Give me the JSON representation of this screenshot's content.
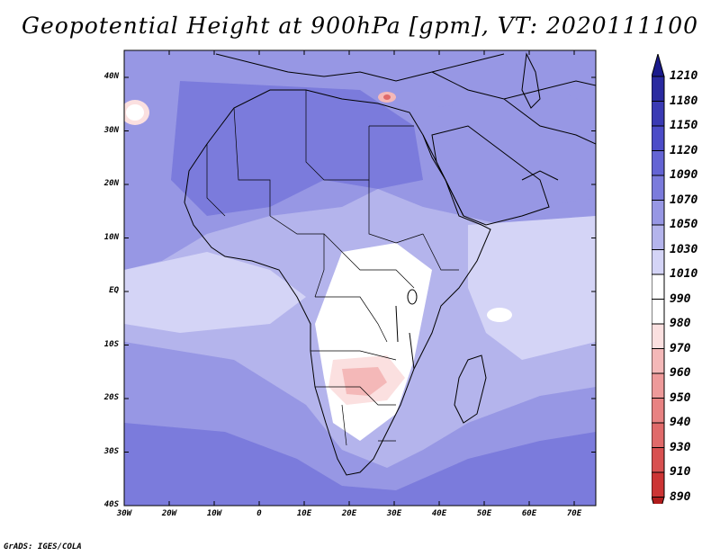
{
  "title": "Geopotential Height at 900hPa [gpm], VT: 2020111100",
  "credit": "GrADS: IGES/COLA",
  "map": {
    "lat_labels": [
      "40N",
      "30N",
      "20N",
      "10N",
      "EQ",
      "10S",
      "20S",
      "30S",
      "40S"
    ],
    "lon_labels": [
      "30W",
      "20W",
      "10W",
      "0",
      "10E",
      "20E",
      "30E",
      "40E",
      "50E",
      "60E",
      "70E"
    ]
  },
  "colorbar": {
    "levels": [
      "1210",
      "1180",
      "1150",
      "1120",
      "1090",
      "1070",
      "1050",
      "1030",
      "1010",
      "990",
      "980",
      "970",
      "960",
      "950",
      "940",
      "930",
      "910",
      "890"
    ],
    "colors": {
      "top": "#1a1a8c",
      "c1180": "#2a2aa0",
      "c1150": "#3a3ab4",
      "c1120": "#4c4cc8",
      "c1090": "#6464d4",
      "c1070": "#7b7bdc",
      "c1050": "#9797e4",
      "c1030": "#b4b4ec",
      "c1010": "#d4d4f6",
      "c990": "#ffffff",
      "c980": "#fbe0e0",
      "c970": "#f4b8b8",
      "c960": "#ee9a9a",
      "c950": "#e88282",
      "c940": "#e06a6a",
      "c930": "#d85050",
      "c910": "#cc3434",
      "bottom": "#b01c1c"
    }
  }
}
